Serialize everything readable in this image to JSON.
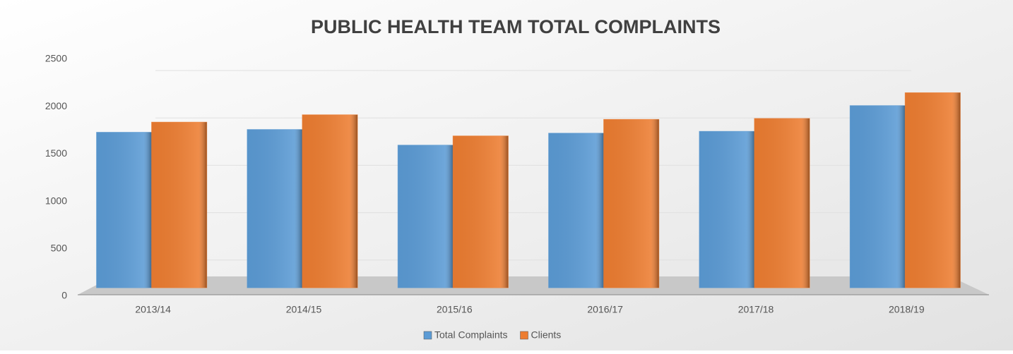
{
  "chart_data": {
    "type": "bar",
    "title": "PUBLIC HEALTH TEAM TOTAL COMPLAINTS",
    "categories": [
      "2013/14",
      "2014/15",
      "2015/16",
      "2016/17",
      "2017/18",
      "2018/19"
    ],
    "series": [
      {
        "name": "Total Complaints",
        "color": "#5b9bd5",
        "values": [
          1690,
          1720,
          1550,
          1680,
          1700,
          1980
        ]
      },
      {
        "name": "Clients",
        "color": "#ed7d31",
        "values": [
          1800,
          1880,
          1650,
          1830,
          1840,
          2120
        ]
      }
    ],
    "ylim": [
      0,
      2500
    ],
    "yticks": [
      0,
      500,
      1000,
      1500,
      2000,
      2500
    ],
    "grid": true,
    "legend": "bottom"
  }
}
